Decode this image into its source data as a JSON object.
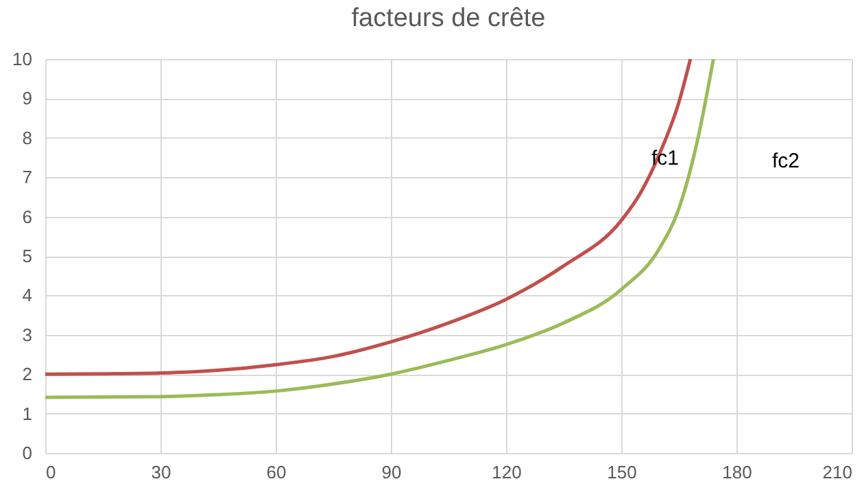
{
  "chart_data": {
    "type": "line",
    "title": "facteurs de crête",
    "x": [
      0,
      15,
      30,
      45,
      60,
      75,
      90,
      105,
      120,
      135,
      150,
      155,
      160,
      165,
      168
    ],
    "series": [
      {
        "color": "#c0504d",
        "values": [
          2.0,
          2.01,
          2.03,
          2.1,
          2.24,
          2.45,
          2.82,
          3.3,
          3.9,
          4.75,
          5.9,
          6.6,
          7.6,
          8.9,
          10
        ]
      },
      {
        "color": "#9bbb59",
        "x": [
          0,
          15,
          30,
          45,
          60,
          75,
          90,
          105,
          120,
          135,
          150,
          160,
          165,
          170,
          174
        ],
        "values": [
          1.41,
          1.42,
          1.43,
          1.48,
          1.57,
          1.75,
          2.0,
          2.35,
          2.75,
          3.3,
          4.15,
          5.2,
          6.2,
          8.0,
          10
        ]
      }
    ],
    "annotations": [
      "fc1",
      "fc2"
    ],
    "xlim": [
      0,
      210
    ],
    "xticks": [
      0,
      30,
      60,
      90,
      120,
      150,
      180,
      210
    ],
    "ylim": [
      0,
      10
    ],
    "yticks": [
      0,
      1,
      2,
      3,
      4,
      5,
      6,
      7,
      8,
      9,
      10
    ],
    "grid": true,
    "marker": "none",
    "line_style": "solid"
  }
}
